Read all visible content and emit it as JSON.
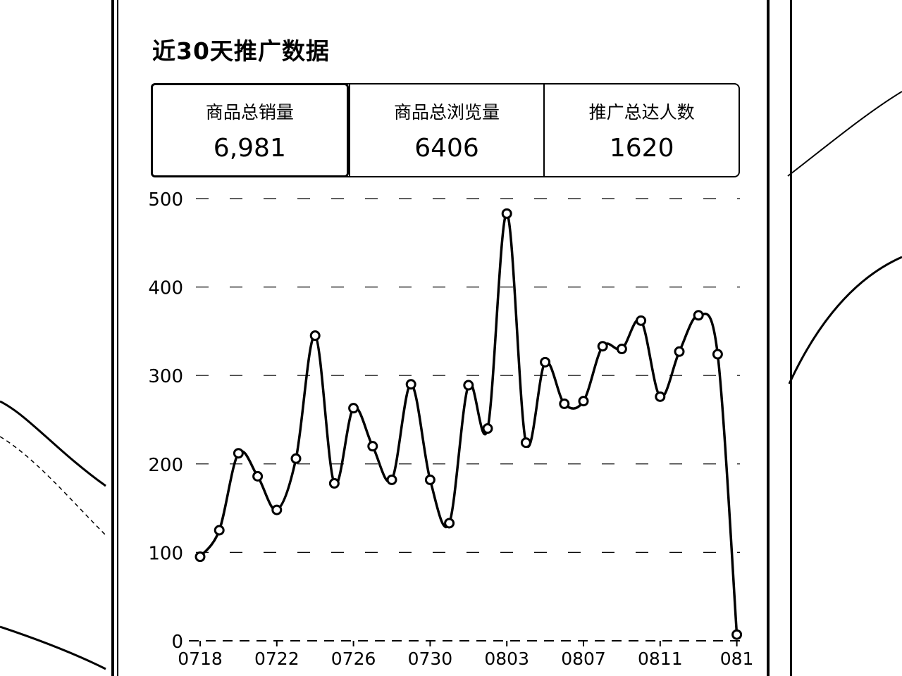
{
  "title": "近30天推广数据",
  "stats": [
    {
      "label": "商品总销量",
      "value": "6,981"
    },
    {
      "label": "商品总浏览量",
      "value": "6406"
    },
    {
      "label": "推广总达人数",
      "value": "1620"
    }
  ],
  "chart_data": {
    "type": "line",
    "y_ticks": [
      "0",
      "100",
      "200",
      "300",
      "400",
      "500"
    ],
    "ylim": [
      0,
      500
    ],
    "x_ticks": [
      "0718",
      "0722",
      "0726",
      "0730",
      "0803",
      "0807",
      "0811",
      "081"
    ],
    "x": [
      "0718",
      "0719",
      "0720",
      "0721",
      "0722",
      "0723",
      "0724",
      "0725",
      "0726",
      "0727",
      "0728",
      "0729",
      "0730",
      "0731",
      "0801",
      "0802",
      "0803",
      "0804",
      "0805",
      "0806",
      "0807",
      "0808",
      "0809",
      "0810",
      "0811",
      "0812",
      "0813",
      "0814",
      "0815"
    ],
    "values": [
      95,
      125,
      212,
      186,
      148,
      206,
      345,
      178,
      263,
      220,
      182,
      290,
      182,
      133,
      289,
      240,
      483,
      224,
      315,
      268,
      271,
      333,
      330,
      362,
      276,
      327,
      368,
      324,
      7
    ],
    "grid": "dashed horizontal"
  }
}
